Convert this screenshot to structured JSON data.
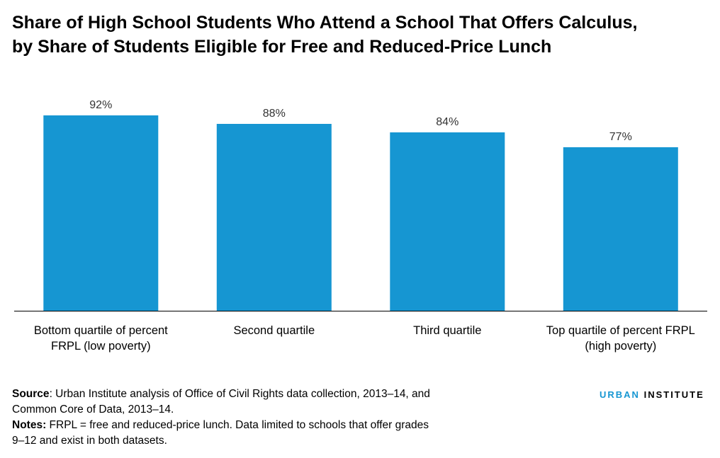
{
  "title_lines": [
    "Share of High School Students Who Attend a School That Offers Calculus,",
    "by Share of Students Eligible for Free and Reduced-Price Lunch"
  ],
  "chart_data": {
    "type": "bar",
    "categories": [
      [
        "Bottom quartile of percent",
        "FRPL (low poverty)"
      ],
      [
        "Second quartile"
      ],
      [
        "Third quartile"
      ],
      [
        "Top quartile of percent FRPL",
        "(high poverty)"
      ]
    ],
    "values": [
      92,
      88,
      84,
      77
    ],
    "data_labels": [
      "92%",
      "88%",
      "84%",
      "77%"
    ],
    "ylim": [
      0,
      100
    ],
    "grid": false,
    "colors": {
      "bar": "#1696d2",
      "axis": "#000000",
      "label": "#333333"
    }
  },
  "footer": {
    "source_label": "Source",
    "source_lines": [
      ": Urban Institute analysis of Office of Civil Rights data collection, 2013–14, and",
      "Common Core of Data, 2013–14."
    ],
    "notes_label": "Notes:",
    "notes_lines": [
      " FRPL = free and reduced-price lunch. Data limited to schools that offer grades",
      "9–12 and exist in both datasets."
    ]
  },
  "logo": {
    "brand": "URBAN",
    "suffix": "INSTITUTE"
  }
}
